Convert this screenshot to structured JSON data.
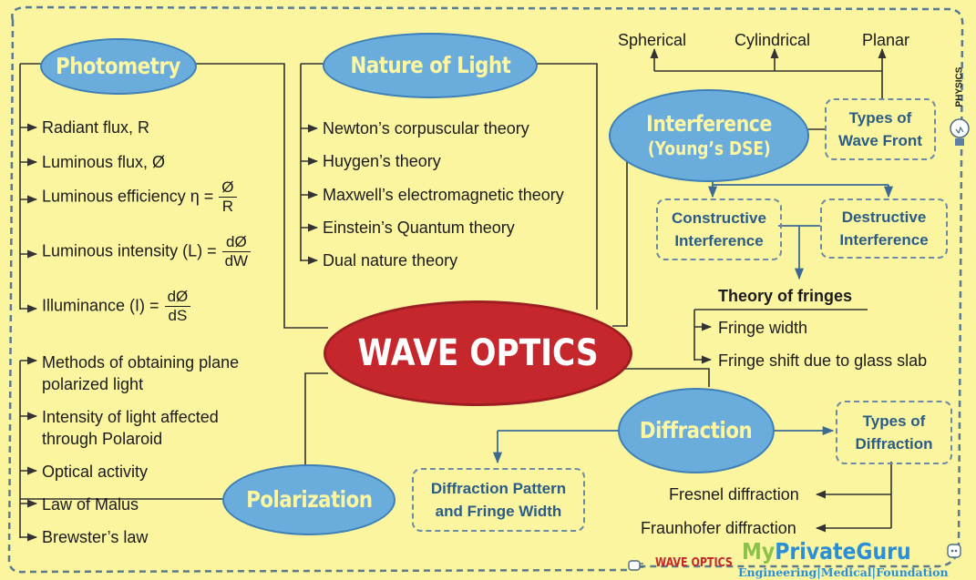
{
  "center": {
    "title": "WAVE OPTICS"
  },
  "photometry": {
    "title": "Photometry",
    "items": {
      "radiant": "Radiant flux, R",
      "luminous_flux": "Luminous flux, Ø",
      "efficiency": {
        "label": "Luminous efficiency η =",
        "num": "Ø",
        "den": "R"
      },
      "intensity": {
        "label": "Luminous intensity (L) =",
        "num": "dØ",
        "den": "dW"
      },
      "illuminance": {
        "label": "Illuminance (I) =",
        "num": "dØ",
        "den": "dS"
      }
    }
  },
  "nature": {
    "title": "Nature of Light",
    "items": [
      "Newton’s corpuscular theory",
      "Huygen’s theory",
      "Maxwell’s electromagnetic theory",
      "Einstein’s  Quantum theory",
      "Dual nature theory"
    ]
  },
  "interference": {
    "title": "Interference",
    "subtitle": "(Young’s DSE)",
    "wavefronts": [
      "Spherical",
      "Cylindrical",
      "Planar"
    ],
    "types_box": [
      "Types of",
      "Wave Front"
    ],
    "constructive": [
      "Constructive",
      "Interference"
    ],
    "destructive": [
      "Destructive",
      "Interference"
    ],
    "fringes_heading": "Theory of fringes",
    "fringes": [
      "Fringe width",
      "Fringe shift due to glass slab"
    ]
  },
  "polarization": {
    "title": "Polarization",
    "items": [
      "Methods of obtaining plane polarized  light",
      "Intensity of light affected through Polaroid",
      "Optical activity",
      "Law of Malus",
      "Brewster’s law"
    ]
  },
  "diffraction": {
    "title": "Diffraction",
    "pattern_box": [
      "Diffraction Pattern",
      "and Fringe Width"
    ],
    "types_box": [
      "Types of",
      "Diffraction"
    ],
    "types": [
      "Fresnel diffraction",
      "Fraunhofer diffraction"
    ]
  },
  "footer": {
    "side_label": "PHYSICS",
    "topic": "WAVE OPTICS",
    "brand_my": "My",
    "brand_private": "Private",
    "brand_guru": "Guru",
    "tagline": "Engineering|Medical|Foundation"
  },
  "colors": {
    "background": "#fbf5a0",
    "ellipse": "#6aaddd",
    "center": "#c5272d",
    "box_text": "#2b5c86"
  }
}
